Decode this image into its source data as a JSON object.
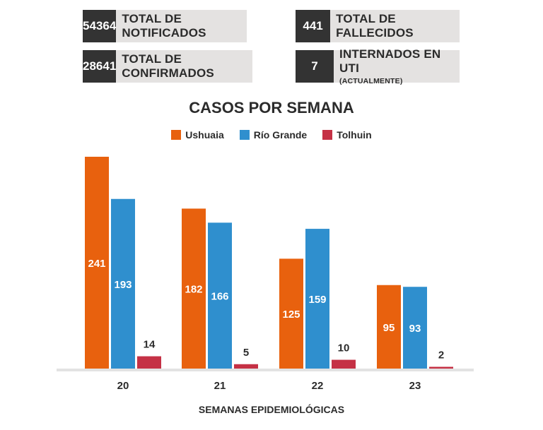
{
  "stats": [
    {
      "value": "54364",
      "label": "TOTAL DE NOTIFICADOS",
      "sub": ""
    },
    {
      "value": "28641",
      "label": "TOTAL DE CONFIRMADOS",
      "sub": ""
    },
    {
      "value": "441",
      "label": "TOTAL DE FALLECIDOS",
      "sub": ""
    },
    {
      "value": "7",
      "label": "INTERNADOS EN UTI",
      "sub": "(ACTUALMENTE)"
    }
  ],
  "chart_data": {
    "type": "bar",
    "title": "CASOS POR SEMANA",
    "xlabel": "SEMANAS EPIDEMIOLÓGICAS",
    "ylabel": "",
    "categories": [
      "20",
      "21",
      "22",
      "23"
    ],
    "series": [
      {
        "name": "Ushuaia",
        "color": "#e8610e",
        "values": [
          241,
          182,
          125,
          95
        ]
      },
      {
        "name": "Río Grande",
        "color": "#2f8fce",
        "values": [
          193,
          166,
          159,
          93
        ]
      },
      {
        "name": "Tolhuin",
        "color": "#c53145",
        "values": [
          14,
          5,
          10,
          2
        ]
      }
    ],
    "ylim": [
      0,
      241
    ],
    "grid": false,
    "legend_position": "top-center"
  }
}
